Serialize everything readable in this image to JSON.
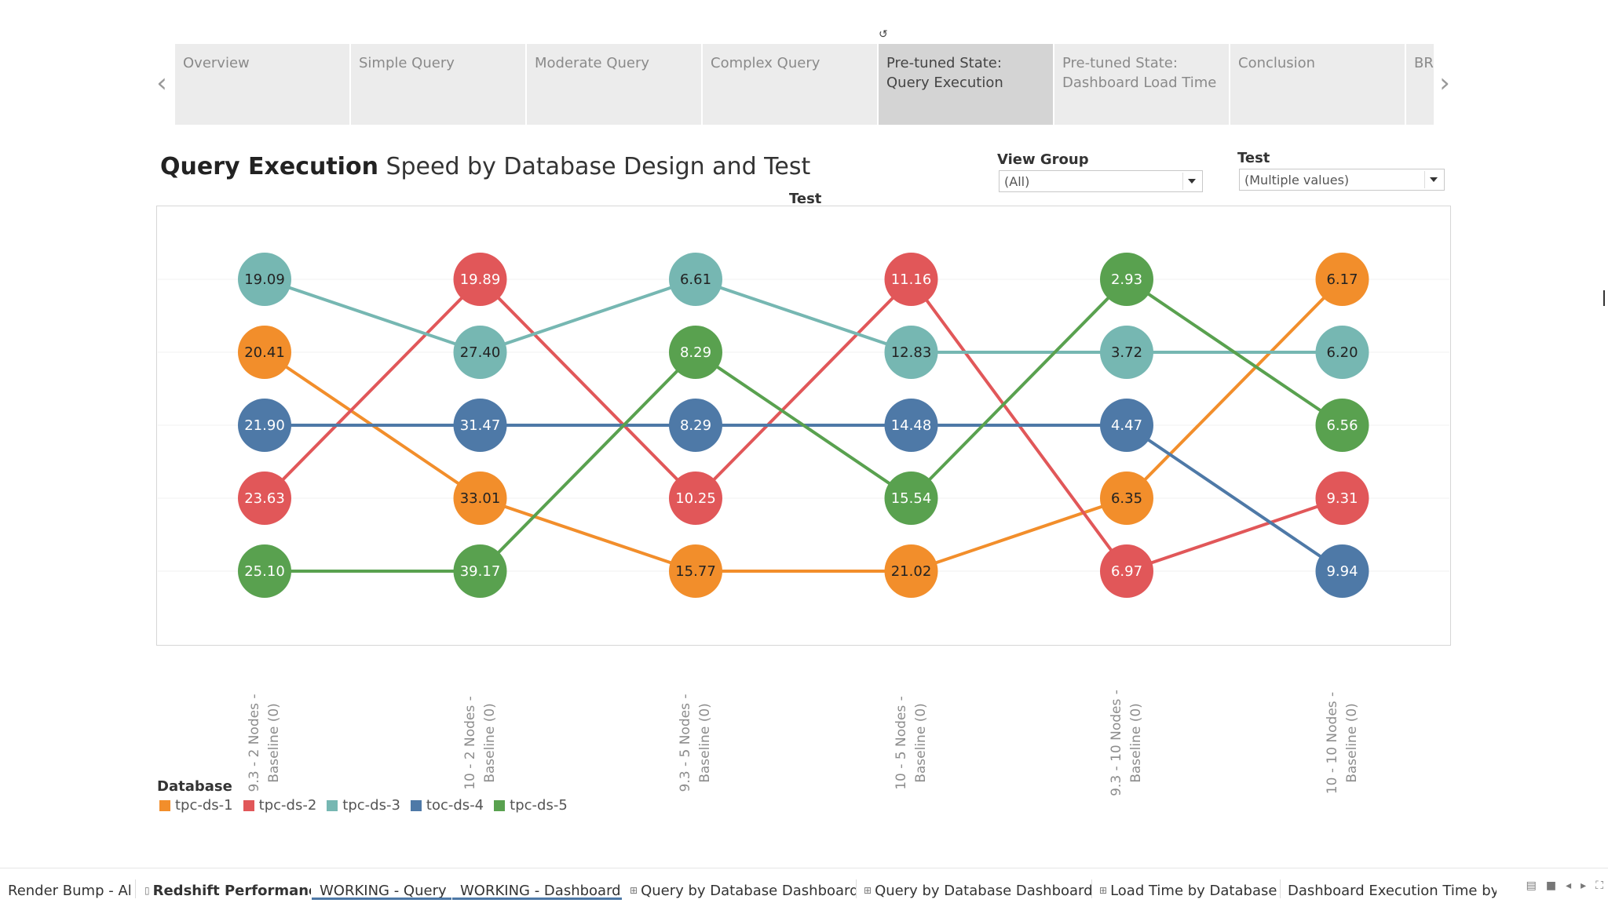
{
  "story_tabs": [
    "Overview",
    "Simple Query",
    "Moderate Query",
    "Complex Query",
    "Pre-tuned State: Query Execution",
    "Pre-tuned State: Dashboard Load Time",
    "Conclusion",
    "BR"
  ],
  "active_story_tab": 4,
  "title": {
    "bold": "Query Execution",
    "rest": " Speed by Database Design and Test"
  },
  "filters": {
    "view_group": {
      "label": "View Group",
      "value": "(All)"
    },
    "test": {
      "label": "Test",
      "value": "(Multiple values)"
    }
  },
  "chart_data": {
    "type": "line",
    "header": "Test",
    "categories": [
      "9.3 - 2 Nodes - Baseline (0)",
      "10 - 2 Nodes - Baseline (0)",
      "9.3 - 5 Nodes - Baseline (0)",
      "10 - 5 Nodes - Baseline (0)",
      "9.3 - 10 Nodes - Baseline (0)",
      "10 - 10 Nodes - Baseline (0)"
    ],
    "category_lines": [
      [
        "9.3 - 2 Nodes -",
        "Baseline (0)"
      ],
      [
        "10 - 2 Nodes -",
        "Baseline (0)"
      ],
      [
        "9.3 - 5 Nodes -",
        "Baseline (0)"
      ],
      [
        "10 - 5 Nodes -",
        "Baseline (0)"
      ],
      [
        "9.3 - 10 Nodes -",
        "Baseline (0)"
      ],
      [
        "10 - 10 Nodes -",
        "Baseline (0)"
      ]
    ],
    "ranks": 5,
    "series": [
      {
        "name": "tpc-ds-1",
        "color": "#f28e2b",
        "rank": [
          2,
          4,
          5,
          5,
          4,
          1
        ],
        "labels": [
          "20.41",
          "33.01",
          "15.77",
          "21.02",
          "6.35",
          "6.17"
        ]
      },
      {
        "name": "tpc-ds-2",
        "color": "#e15759",
        "rank": [
          4,
          1,
          4,
          1,
          5,
          4
        ],
        "labels": [
          "23.63",
          "19.89",
          "10.25",
          "11.16",
          "6.97",
          "9.31"
        ]
      },
      {
        "name": "tpc-ds-3",
        "color": "#76b7b2",
        "rank": [
          1,
          2,
          1,
          2,
          2,
          2
        ],
        "labels": [
          "19.09",
          "27.40",
          "6.61",
          "12.83",
          "3.72",
          "6.20"
        ]
      },
      {
        "name": "toc-ds-4",
        "color": "#4e79a7",
        "rank": [
          3,
          3,
          3,
          3,
          3,
          5
        ],
        "labels": [
          "21.90",
          "31.47",
          "8.29",
          "14.48",
          "4.47",
          "9.94"
        ]
      },
      {
        "name": "tpc-ds-5",
        "color": "#59a14f",
        "rank": [
          5,
          5,
          2,
          4,
          1,
          3
        ],
        "labels": [
          "25.10",
          "39.17",
          "8.29",
          "15.54",
          "2.93",
          "6.56"
        ]
      }
    ],
    "legend_title": "Database",
    "legend_position": "bottom-left"
  },
  "sheet_tabs": [
    {
      "label": "Render Bump - All",
      "icon": ""
    },
    {
      "label": "Redshift Performance",
      "icon": "story-icon"
    },
    {
      "label": "WORKING - Query",
      "icon": ""
    },
    {
      "label": "WORKING - Dashboard",
      "icon": ""
    },
    {
      "label": "Query by Database Dashboard",
      "icon": "dashboard-icon"
    },
    {
      "label": "Query by Database Dashboard...",
      "icon": "dashboard-icon"
    },
    {
      "label": "Load  Time by Database",
      "icon": "dashboard-icon"
    },
    {
      "label": "Dashboard Execution Time by Tes",
      "icon": ""
    }
  ]
}
